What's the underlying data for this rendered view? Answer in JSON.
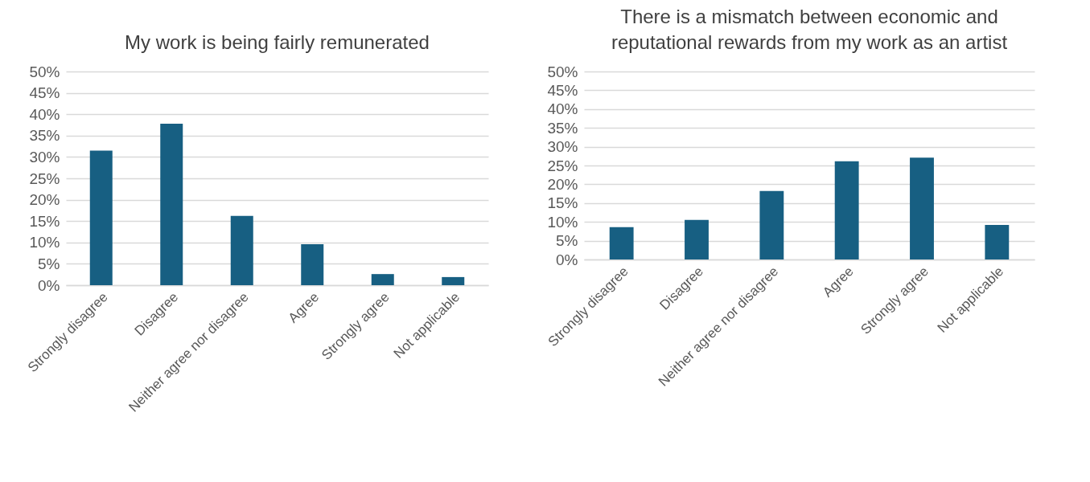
{
  "chart_data": [
    {
      "type": "bar",
      "title": "My work is being fairly remunerated",
      "categories": [
        "Strongly disagree",
        "Disagree",
        "Neither agree nor disagree",
        "Agree",
        "Strongly agree",
        "Not applicable"
      ],
      "values": [
        31.5,
        37.8,
        16.2,
        9.6,
        2.6,
        1.9
      ],
      "color": "#175f82",
      "ylim": [
        0,
        50
      ],
      "yticks": [
        {
          "value": 0,
          "label": "0%"
        },
        {
          "value": 5,
          "label": "5%"
        },
        {
          "value": 10,
          "label": "10%"
        },
        {
          "value": 15,
          "label": "15%"
        },
        {
          "value": 20,
          "label": "20%"
        },
        {
          "value": 25,
          "label": "25%"
        },
        {
          "value": 30,
          "label": "30%"
        },
        {
          "value": 35,
          "label": "35%"
        },
        {
          "value": 40,
          "label": "40%"
        },
        {
          "value": 45,
          "label": "45%"
        },
        {
          "value": 50,
          "label": "50%"
        }
      ],
      "grid": "y",
      "legend": false
    },
    {
      "type": "bar",
      "title": [
        "There is a mismatch between economic and",
        "reputational rewards from my work as an artist"
      ],
      "categories": [
        "Strongly disagree",
        "Disagree",
        "Neither agree nor disagree",
        "Agree",
        "Strongly agree",
        "Not applicable"
      ],
      "values": [
        8.6,
        10.5,
        18.2,
        26.1,
        27.1,
        9.2
      ],
      "color": "#175f82",
      "ylim": [
        0,
        50
      ],
      "yticks": [
        {
          "value": 0,
          "label": "0%"
        },
        {
          "value": 5,
          "label": "5%"
        },
        {
          "value": 10,
          "label": "10%"
        },
        {
          "value": 15,
          "label": "15%"
        },
        {
          "value": 20,
          "label": "20%"
        },
        {
          "value": 25,
          "label": "25%"
        },
        {
          "value": 30,
          "label": "30%"
        },
        {
          "value": 35,
          "label": "35%"
        },
        {
          "value": 40,
          "label": "40%"
        },
        {
          "value": 45,
          "label": "45%"
        },
        {
          "value": 50,
          "label": "50%"
        }
      ],
      "grid": "y",
      "legend": false
    }
  ]
}
